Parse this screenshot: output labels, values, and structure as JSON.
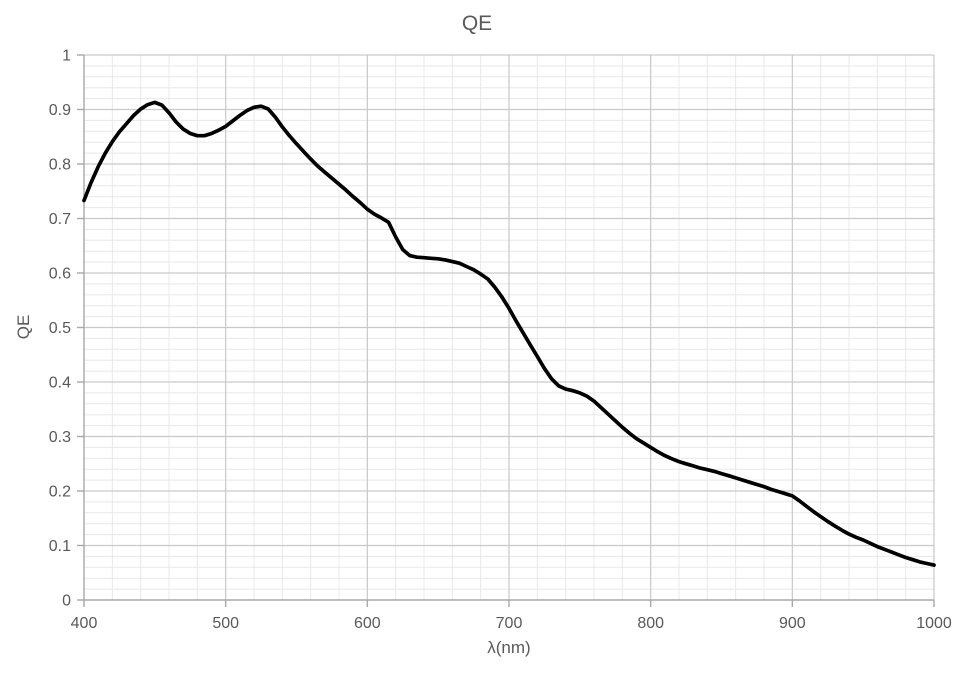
{
  "chart_data": {
    "type": "line",
    "title": "QE",
    "xlabel": "λ(nm)",
    "ylabel": "QE",
    "xlim": [
      400,
      1000
    ],
    "ylim": [
      0,
      1
    ],
    "x_ticks": [
      400,
      500,
      600,
      700,
      800,
      900,
      1000
    ],
    "x_tick_labels": [
      "400",
      "500",
      "600",
      "700",
      "800",
      "900",
      "1000"
    ],
    "y_ticks": [
      0,
      0.1,
      0.2,
      0.3,
      0.4,
      0.5,
      0.6,
      0.7,
      0.8,
      0.9,
      1
    ],
    "y_tick_labels": [
      "0",
      "0.1",
      "0.2",
      "0.3",
      "0.4",
      "0.5",
      "0.6",
      "0.7",
      "0.8",
      "0.9",
      "1"
    ],
    "x_minor_step": 20,
    "y_minor_step": 0.02,
    "grid": "major+minor",
    "legend": "none",
    "colors": {
      "text": "#595959",
      "grid_minor": "#e8e8e8",
      "grid_major": "#c9c9c9",
      "axis": "#a8a8a8",
      "background": "#ffffff"
    },
    "series": [
      {
        "name": "QE",
        "color": "#000000",
        "stroke_width": 3.7,
        "x": [
          400,
          405,
          410,
          415,
          420,
          425,
          430,
          435,
          440,
          445,
          450,
          455,
          460,
          465,
          470,
          475,
          480,
          485,
          490,
          495,
          500,
          505,
          510,
          515,
          520,
          525,
          530,
          535,
          540,
          545,
          550,
          555,
          560,
          565,
          570,
          575,
          580,
          585,
          590,
          595,
          600,
          605,
          610,
          615,
          620,
          625,
          630,
          635,
          640,
          645,
          650,
          655,
          660,
          665,
          670,
          675,
          680,
          685,
          690,
          695,
          700,
          705,
          710,
          715,
          720,
          725,
          730,
          735,
          740,
          745,
          750,
          755,
          760,
          765,
          770,
          775,
          780,
          785,
          790,
          795,
          800,
          805,
          810,
          815,
          820,
          825,
          830,
          835,
          840,
          845,
          850,
          855,
          860,
          865,
          870,
          875,
          880,
          885,
          890,
          895,
          900,
          905,
          910,
          915,
          920,
          925,
          930,
          935,
          940,
          945,
          950,
          955,
          960,
          965,
          970,
          975,
          980,
          985,
          990,
          995,
          1000
        ],
        "y": [
          0.733,
          0.766,
          0.795,
          0.82,
          0.841,
          0.859,
          0.874,
          0.889,
          0.901,
          0.909,
          0.913,
          0.908,
          0.894,
          0.877,
          0.864,
          0.856,
          0.852,
          0.852,
          0.856,
          0.862,
          0.869,
          0.879,
          0.889,
          0.898,
          0.904,
          0.906,
          0.901,
          0.886,
          0.868,
          0.852,
          0.837,
          0.823,
          0.809,
          0.796,
          0.785,
          0.774,
          0.763,
          0.752,
          0.74,
          0.729,
          0.717,
          0.708,
          0.701,
          0.693,
          0.666,
          0.643,
          0.632,
          0.629,
          0.628,
          0.627,
          0.626,
          0.624,
          0.621,
          0.618,
          0.612,
          0.606,
          0.598,
          0.589,
          0.574,
          0.556,
          0.535,
          0.512,
          0.49,
          0.468,
          0.447,
          0.425,
          0.406,
          0.393,
          0.387,
          0.384,
          0.38,
          0.374,
          0.365,
          0.353,
          0.341,
          0.329,
          0.317,
          0.306,
          0.296,
          0.288,
          0.28,
          0.272,
          0.265,
          0.259,
          0.254,
          0.25,
          0.246,
          0.242,
          0.239,
          0.236,
          0.232,
          0.228,
          0.224,
          0.22,
          0.216,
          0.212,
          0.208,
          0.203,
          0.199,
          0.195,
          0.191,
          0.182,
          0.172,
          0.162,
          0.153,
          0.144,
          0.136,
          0.128,
          0.121,
          0.115,
          0.11,
          0.104,
          0.098,
          0.093,
          0.088,
          0.083,
          0.078,
          0.074,
          0.07,
          0.067,
          0.064
        ]
      }
    ]
  }
}
